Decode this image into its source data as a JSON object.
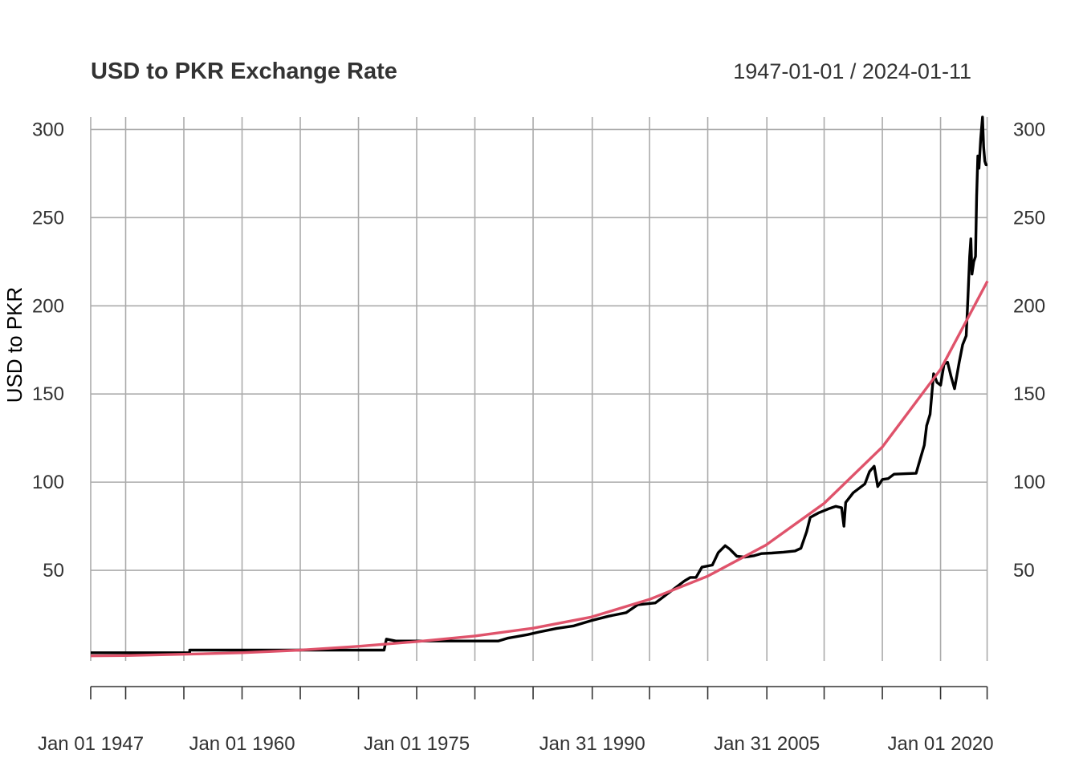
{
  "chart_data": {
    "type": "line",
    "title": "USD to PKR Exchange Rate",
    "date_range": "1947-01-01 / 2024-01-11",
    "ylabel": "USD to PKR",
    "xlabel": "",
    "xlim": [
      1947.0,
      2024.03
    ],
    "ylim": [
      -5,
      307
    ],
    "y_ticks": [
      50,
      100,
      150,
      200,
      250,
      300
    ],
    "x_tick_labels": [
      {
        "label": "Jan 01 1947",
        "x": 1947.0
      },
      {
        "label": "Jan 01 1960",
        "x": 1960.0
      },
      {
        "label": "Jan 01 1975",
        "x": 1975.0
      },
      {
        "label": "Jan 31 1990",
        "x": 1990.08
      },
      {
        "label": "Jan 31 2005",
        "x": 2005.08
      },
      {
        "label": "Jan 01 2020",
        "x": 2020.0
      }
    ],
    "x_minor_ticks": [
      1947.0,
      1950.0,
      1955.0,
      1960.0,
      1965.0,
      1970.0,
      1975.0,
      1980.0,
      1985.0,
      1990.08,
      1995.0,
      2000.0,
      2005.08,
      2010.0,
      2015.0,
      2020.0,
      2024.0
    ],
    "grid": true,
    "legend": "none",
    "series": [
      {
        "color": "#000000",
        "points": [
          [
            1947.0,
            3.3
          ],
          [
            1955.5,
            3.3
          ],
          [
            1955.5,
            4.76
          ],
          [
            1972.2,
            4.76
          ],
          [
            1972.4,
            11.0
          ],
          [
            1973.2,
            9.9
          ],
          [
            1982.0,
            9.9
          ],
          [
            1982.8,
            11.5
          ],
          [
            1984.5,
            13.5
          ],
          [
            1985.5,
            15.0
          ],
          [
            1987.0,
            17.0
          ],
          [
            1988.5,
            18.5
          ],
          [
            1990.0,
            21.5
          ],
          [
            1991.5,
            24.0
          ],
          [
            1993.0,
            26.0
          ],
          [
            1994.0,
            30.5
          ],
          [
            1995.5,
            31.5
          ],
          [
            1996.0,
            34.0
          ],
          [
            1997.0,
            39.0
          ],
          [
            1998.0,
            44.0
          ],
          [
            1998.5,
            46.0
          ],
          [
            1999.0,
            46.0
          ],
          [
            1999.5,
            51.8
          ],
          [
            2000.4,
            53.0
          ],
          [
            2000.9,
            60.0
          ],
          [
            2001.5,
            64.0
          ],
          [
            2001.9,
            62.0
          ],
          [
            2002.5,
            58.0
          ],
          [
            2003.2,
            57.5
          ],
          [
            2004.0,
            58.3
          ],
          [
            2004.6,
            59.5
          ],
          [
            2005.5,
            59.8
          ],
          [
            2006.5,
            60.3
          ],
          [
            2007.5,
            61.0
          ],
          [
            2008.0,
            62.5
          ],
          [
            2008.5,
            72.0
          ],
          [
            2008.8,
            80.0
          ],
          [
            2009.5,
            82.5
          ],
          [
            2010.5,
            85.2
          ],
          [
            2011.0,
            86.3
          ],
          [
            2011.5,
            85.5
          ],
          [
            2011.7,
            75.0
          ],
          [
            2011.85,
            88.5
          ],
          [
            2012.5,
            94.0
          ],
          [
            2013.5,
            99.0
          ],
          [
            2013.9,
            106.0
          ],
          [
            2014.3,
            109.0
          ],
          [
            2014.6,
            97.5
          ],
          [
            2015.0,
            101.5
          ],
          [
            2015.5,
            102.0
          ],
          [
            2016.0,
            104.5
          ],
          [
            2017.0,
            104.8
          ],
          [
            2017.9,
            105.0
          ],
          [
            2018.2,
            112.0
          ],
          [
            2018.6,
            121.0
          ],
          [
            2018.8,
            132.0
          ],
          [
            2019.1,
            138.5
          ],
          [
            2019.4,
            161.5
          ],
          [
            2019.7,
            156.5
          ],
          [
            2020.0,
            155.0
          ],
          [
            2020.3,
            167.0
          ],
          [
            2020.6,
            168.0
          ],
          [
            2020.9,
            160.0
          ],
          [
            2021.2,
            153.0
          ],
          [
            2021.6,
            168.0
          ],
          [
            2021.9,
            178.0
          ],
          [
            2022.2,
            183.0
          ],
          [
            2022.35,
            204.0
          ],
          [
            2022.5,
            228.0
          ],
          [
            2022.6,
            238.0
          ],
          [
            2022.7,
            218.0
          ],
          [
            2022.85,
            225.0
          ],
          [
            2023.0,
            228.0
          ],
          [
            2023.1,
            262.0
          ],
          [
            2023.2,
            285.0
          ],
          [
            2023.3,
            278.0
          ],
          [
            2023.45,
            295.0
          ],
          [
            2023.6,
            307.0
          ],
          [
            2023.7,
            290.0
          ],
          [
            2023.8,
            282.0
          ],
          [
            2023.9,
            280.0
          ],
          [
            2024.03,
            280.0
          ]
        ]
      },
      {
        "color": "#df536b",
        "points": [
          [
            1947.0,
            1.5
          ],
          [
            1950.0,
            1.7
          ],
          [
            1955.0,
            2.4
          ],
          [
            1960.0,
            3.3
          ],
          [
            1965.0,
            4.8
          ],
          [
            1970.0,
            6.9
          ],
          [
            1975.0,
            9.6
          ],
          [
            1980.0,
            12.8
          ],
          [
            1985.0,
            17.2
          ],
          [
            1990.0,
            23.5
          ],
          [
            1995.0,
            33.5
          ],
          [
            2000.0,
            46.7
          ],
          [
            2005.0,
            64.3
          ],
          [
            2010.0,
            88.0
          ],
          [
            2015.0,
            120.0
          ],
          [
            2020.0,
            164.0
          ],
          [
            2024.03,
            214.0
          ]
        ]
      }
    ]
  }
}
